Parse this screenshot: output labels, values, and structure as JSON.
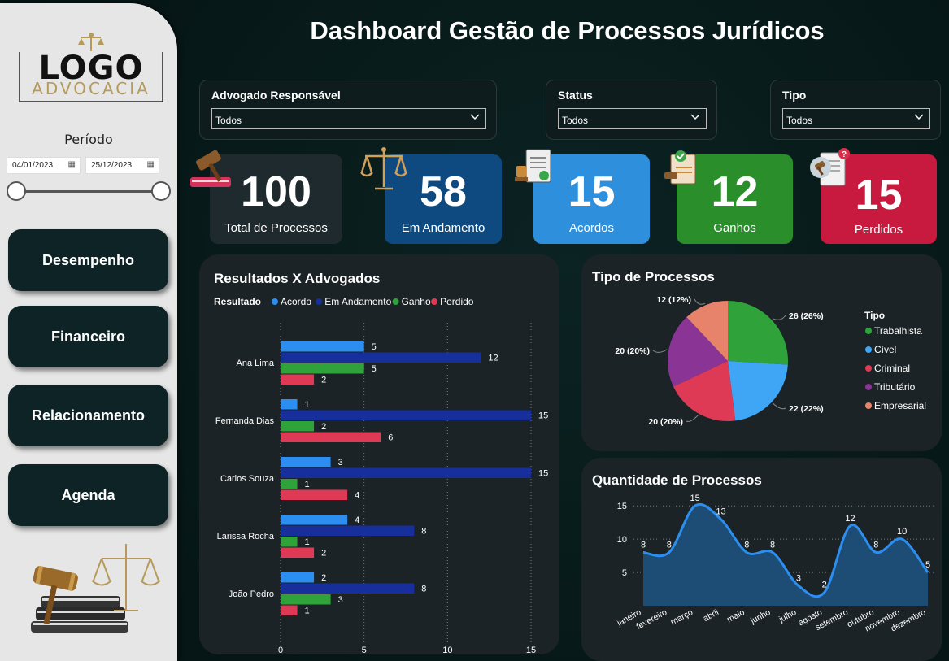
{
  "title": "Dashboard Gestão de Processos Jurídicos",
  "logo": {
    "main": "LOGO",
    "sub": "ADVOCACIA"
  },
  "sidebar": {
    "periodo_label": "Período",
    "date_start": "04/01/2023",
    "date_end": "25/12/2023",
    "nav": [
      "Desempenho",
      "Financeiro",
      "Relacionamento",
      "Agenda"
    ]
  },
  "filters": {
    "advogado": {
      "label": "Advogado Responsável",
      "value": "Todos"
    },
    "status": {
      "label": "Status",
      "value": "Todos"
    },
    "tipo": {
      "label": "Tipo",
      "value": "Todos"
    }
  },
  "kpis": [
    {
      "value": "100",
      "label": "Total de Processos",
      "color": "#1e2a2d"
    },
    {
      "value": "58",
      "label": "Em Andamento",
      "color": "#0e4a7f"
    },
    {
      "value": "15",
      "label": "Acordos",
      "color": "#2e90dc"
    },
    {
      "value": "12",
      "label": "Ganhos",
      "color": "#2a8f2a"
    },
    {
      "value": "15",
      "label": "Perdidos",
      "color": "#c81a3e"
    }
  ],
  "bar_chart_title": "Resultados X Advogados",
  "pie_chart_title": "Tipo de Processos",
  "line_chart_title": "Quantidade de Processos",
  "chart_data": [
    {
      "type": "bar",
      "title": "Resultados X Advogados",
      "orientation": "horizontal",
      "legend_title": "Resultado",
      "categories": [
        "Ana Lima",
        "Fernanda Dias",
        "Carlos Souza",
        "Larissa Rocha",
        "João Pedro"
      ],
      "series": [
        {
          "name": "Acordo",
          "color": "#2b8ef0",
          "values": [
            5,
            1,
            3,
            4,
            2
          ]
        },
        {
          "name": "Em Andamento",
          "color": "#162f9a",
          "values": [
            12,
            15,
            15,
            8,
            8
          ]
        },
        {
          "name": "Ganho",
          "color": "#2fa33a",
          "values": [
            5,
            2,
            1,
            1,
            3
          ]
        },
        {
          "name": "Perdido",
          "color": "#df3a55",
          "values": [
            2,
            6,
            4,
            2,
            1
          ]
        }
      ],
      "xlim": [
        0,
        15
      ],
      "xticks": [
        0,
        5,
        10,
        15
      ],
      "grid": true,
      "legend_position": "top-left"
    },
    {
      "type": "pie",
      "title": "Tipo de Processos",
      "legend_title": "Tipo",
      "legend_position": "right",
      "slices": [
        {
          "name": "Trabalhista",
          "value": 26,
          "label": "26 (26%)",
          "color": "#2fa33a"
        },
        {
          "name": "Cível",
          "value": 22,
          "label": "22 (22%)",
          "color": "#3ea6f5"
        },
        {
          "name": "Criminal",
          "value": 20,
          "label": "20 (20%)",
          "color": "#df3a55"
        },
        {
          "name": "Tributário",
          "value": 20,
          "label": "20 (20%)",
          "color": "#8a3596"
        },
        {
          "name": "Empresarial",
          "value": 12,
          "label": "12 (12%)",
          "color": "#e8836b"
        }
      ]
    },
    {
      "type": "area",
      "title": "Quantidade de Processos",
      "categories": [
        "janeiro",
        "fevereiro",
        "março",
        "abril",
        "maio",
        "junho",
        "julho",
        "agosto",
        "setembro",
        "outubro",
        "novembro",
        "dezembro"
      ],
      "values": [
        8,
        8,
        15,
        13,
        8,
        8,
        3,
        2,
        12,
        8,
        10,
        5
      ],
      "ylim": [
        0,
        16
      ],
      "yticks": [
        5,
        10,
        15
      ],
      "grid": true,
      "line_color": "#2b8ef0",
      "fill_color": "#1d4f78"
    }
  ]
}
